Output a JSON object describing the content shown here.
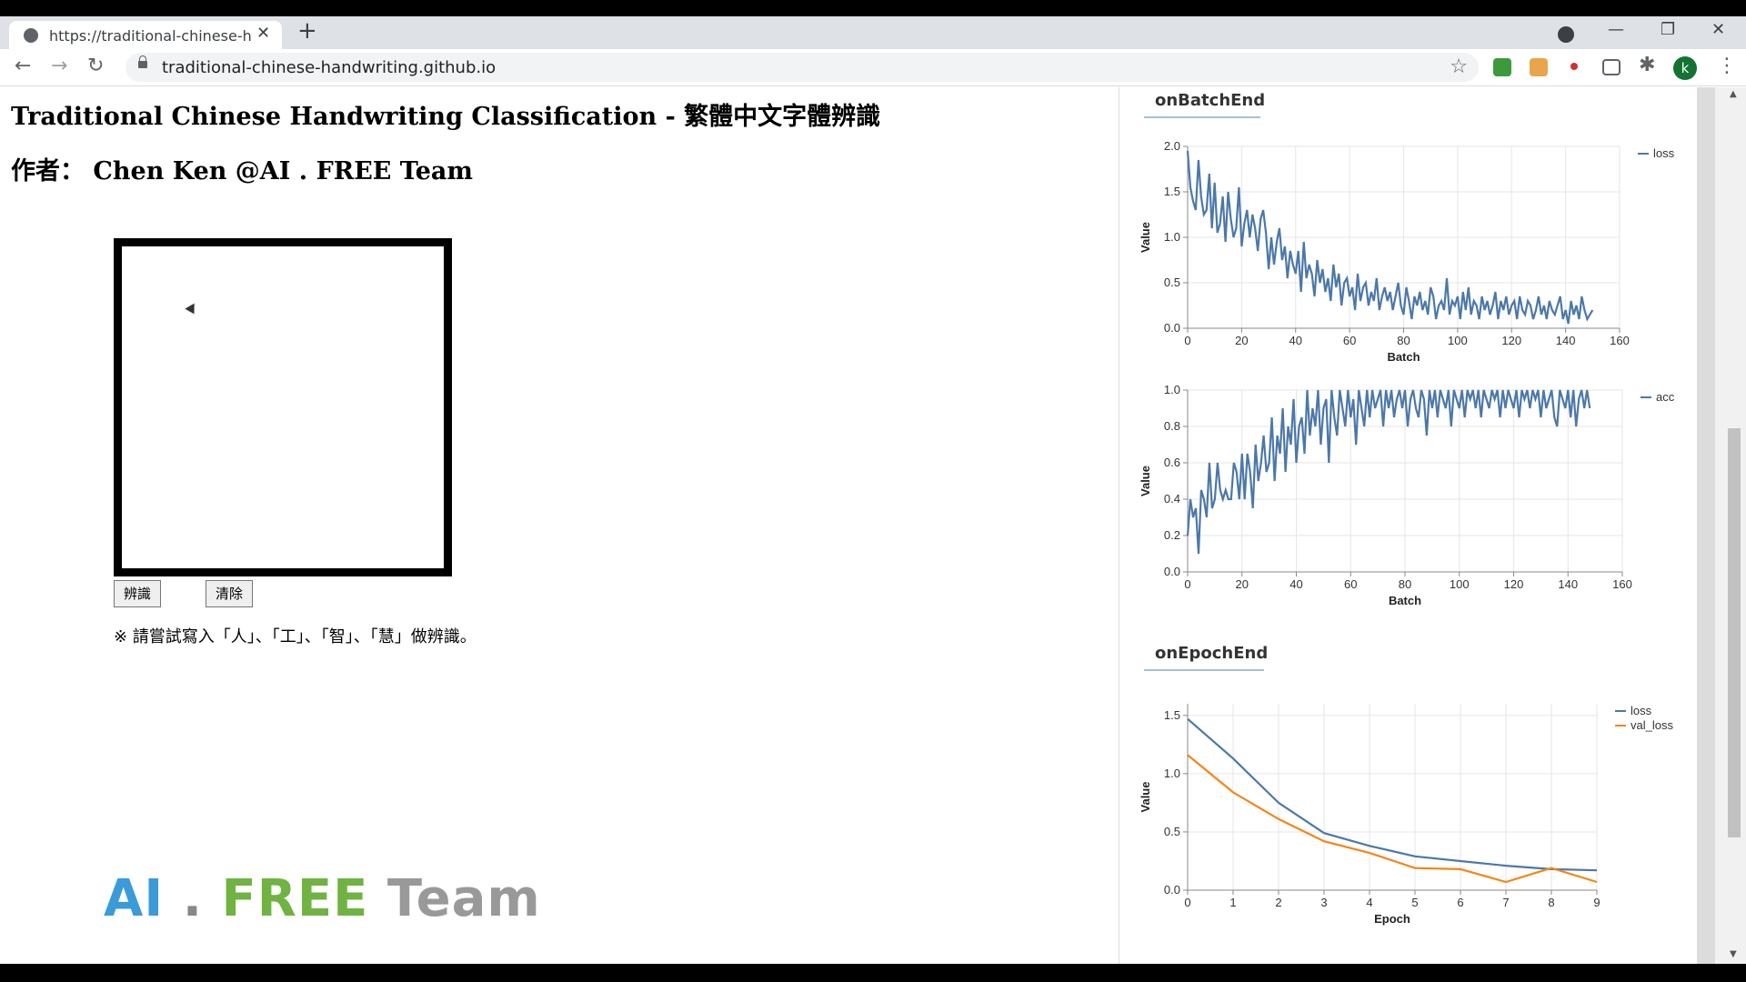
{
  "browser": {
    "tab_title": "https://traditional-chinese-handwriting.github.io",
    "url": "traditional-chinese-handwriting.github.io",
    "avatar_letter": "k"
  },
  "page": {
    "title": "Traditional Chinese Handwriting Classification - 繁體中文字體辨識",
    "author": "作者： Chen Ken @AI . FREE Team",
    "recognize_button": "辨識",
    "clear_button": "清除",
    "hint": "※ 請嘗試寫入「人」、「工」、「智」、「慧」做辨識。",
    "logo": {
      "ai": "AI",
      "dot": ".",
      "free": "FREE",
      "team": "Team"
    }
  },
  "colors": {
    "loss": "#4c78a8",
    "val_loss": "#f58518"
  },
  "sections": {
    "batch": "onBatchEnd",
    "epoch": "onEpochEnd"
  },
  "chart_data": [
    {
      "type": "line",
      "xlabel": "Batch",
      "ylabel": "Value",
      "xlim": [
        0,
        160
      ],
      "ylim": [
        0,
        2.0
      ],
      "xticks": [
        0,
        20,
        40,
        60,
        80,
        100,
        120,
        140,
        160
      ],
      "yticks": [
        0.0,
        0.5,
        1.0,
        1.5,
        2.0
      ],
      "grid": true,
      "legend": "right",
      "series": [
        {
          "name": "loss",
          "values": [
            1.95,
            1.55,
            1.4,
            1.3,
            1.85,
            1.45,
            1.25,
            1.3,
            1.7,
            1.1,
            1.6,
            1.05,
            1.15,
            1.45,
            0.95,
            1.5,
            1.2,
            1.0,
            1.1,
            1.55,
            0.9,
            1.15,
            1.3,
            1.0,
            1.25,
            1.1,
            0.85,
            1.2,
            1.3,
            1.05,
            0.65,
            1.0,
            0.7,
            0.95,
            1.1,
            0.75,
            0.9,
            0.55,
            0.85,
            0.7,
            0.6,
            0.85,
            0.4,
            0.95,
            0.55,
            0.7,
            0.6,
            0.35,
            0.75,
            0.5,
            0.65,
            0.4,
            0.55,
            0.3,
            0.7,
            0.45,
            0.6,
            0.25,
            0.5,
            0.55,
            0.35,
            0.45,
            0.2,
            0.6,
            0.3,
            0.45,
            0.5,
            0.25,
            0.4,
            0.3,
            0.55,
            0.2,
            0.35,
            0.45,
            0.3,
            0.4,
            0.2,
            0.35,
            0.5,
            0.25,
            0.15,
            0.45,
            0.3,
            0.1,
            0.35,
            0.25,
            0.4,
            0.2,
            0.3,
            0.15,
            0.45,
            0.35,
            0.1,
            0.25,
            0.3,
            0.2,
            0.55,
            0.15,
            0.3,
            0.25,
            0.35,
            0.1,
            0.4,
            0.2,
            0.45,
            0.15,
            0.3,
            0.25,
            0.1,
            0.35,
            0.2,
            0.3,
            0.15,
            0.25,
            0.4,
            0.1,
            0.3,
            0.2,
            0.35,
            0.15,
            0.25,
            0.3,
            0.1,
            0.35,
            0.2,
            0.15,
            0.3,
            0.25,
            0.1,
            0.2,
            0.35,
            0.15,
            0.25,
            0.1,
            0.3,
            0.2,
            0.15,
            0.25,
            0.35,
            0.1,
            0.2,
            0.05,
            0.3,
            0.15,
            0.25,
            0.1,
            0.35,
            0.2,
            0.1,
            0.15,
            0.2
          ]
        }
      ]
    },
    {
      "type": "line",
      "xlabel": "Batch",
      "ylabel": "Value",
      "xlim": [
        0,
        160
      ],
      "ylim": [
        0,
        1.0
      ],
      "xticks": [
        0,
        20,
        40,
        60,
        80,
        100,
        120,
        140,
        160
      ],
      "yticks": [
        0.0,
        0.2,
        0.4,
        0.6,
        0.8,
        1.0
      ],
      "grid": true,
      "legend": "right",
      "series": [
        {
          "name": "acc",
          "values": [
            0.2,
            0.4,
            0.3,
            0.35,
            0.1,
            0.45,
            0.4,
            0.3,
            0.6,
            0.35,
            0.4,
            0.6,
            0.45,
            0.4,
            0.45,
            0.4,
            0.4,
            0.6,
            0.55,
            0.4,
            0.65,
            0.4,
            0.65,
            0.55,
            0.35,
            0.7,
            0.5,
            0.6,
            0.75,
            0.55,
            0.6,
            0.85,
            0.5,
            0.75,
            0.65,
            0.9,
            0.55,
            0.8,
            0.7,
            0.95,
            0.6,
            0.8,
            0.85,
            0.65,
            1.0,
            0.75,
            0.9,
            0.8,
            1.0,
            0.7,
            0.9,
            0.95,
            0.6,
            1.0,
            0.85,
            0.75,
            1.0,
            0.9,
            0.8,
            1.0,
            0.85,
            0.95,
            0.7,
            1.0,
            0.9,
            0.8,
            1.0,
            0.85,
            1.0,
            0.9,
            0.95,
            1.0,
            0.8,
            1.0,
            0.9,
            1.0,
            0.85,
            0.95,
            1.0,
            0.9,
            1.0,
            0.8,
            0.95,
            1.0,
            0.9,
            0.85,
            1.0,
            0.95,
            0.75,
            1.0,
            0.9,
            1.0,
            0.85,
            1.0,
            0.95,
            0.9,
            1.0,
            0.8,
            1.0,
            0.95,
            0.9,
            1.0,
            0.85,
            1.0,
            0.95,
            1.0,
            0.9,
            1.0,
            0.85,
            1.0,
            0.95,
            0.9,
            1.0,
            0.95,
            1.0,
            0.85,
            1.0,
            0.9,
            1.0,
            0.95,
            0.9,
            1.0,
            0.85,
            1.0,
            0.95,
            1.0,
            0.9,
            1.0,
            0.95,
            1.0,
            0.85,
            1.0,
            0.9,
            0.95,
            1.0,
            0.85,
            0.8,
            1.0,
            0.95,
            0.9,
            1.0,
            0.85,
            1.0,
            0.8,
            0.95,
            1.0,
            0.9,
            1.0,
            0.9
          ]
        }
      ]
    },
    {
      "type": "line",
      "xlabel": "Epoch",
      "ylabel": "Value",
      "xlim": [
        0,
        9
      ],
      "ylim": [
        0,
        1.6
      ],
      "xticks": [
        0,
        1,
        2,
        3,
        4,
        5,
        6,
        7,
        8,
        9
      ],
      "yticks": [
        0.0,
        0.5,
        1.0,
        1.5
      ],
      "grid": true,
      "legend": "top-right",
      "series": [
        {
          "name": "loss",
          "x": [
            0,
            1,
            2,
            3,
            4,
            5,
            6,
            7,
            8,
            9
          ],
          "values": [
            1.47,
            1.13,
            0.75,
            0.49,
            0.38,
            0.29,
            0.25,
            0.21,
            0.18,
            0.17
          ]
        },
        {
          "name": "val_loss",
          "x": [
            0,
            1,
            2,
            3,
            4,
            5,
            6,
            7,
            8,
            9
          ],
          "values": [
            1.16,
            0.84,
            0.61,
            0.42,
            0.32,
            0.19,
            0.18,
            0.07,
            0.19,
            0.07
          ]
        }
      ]
    }
  ]
}
